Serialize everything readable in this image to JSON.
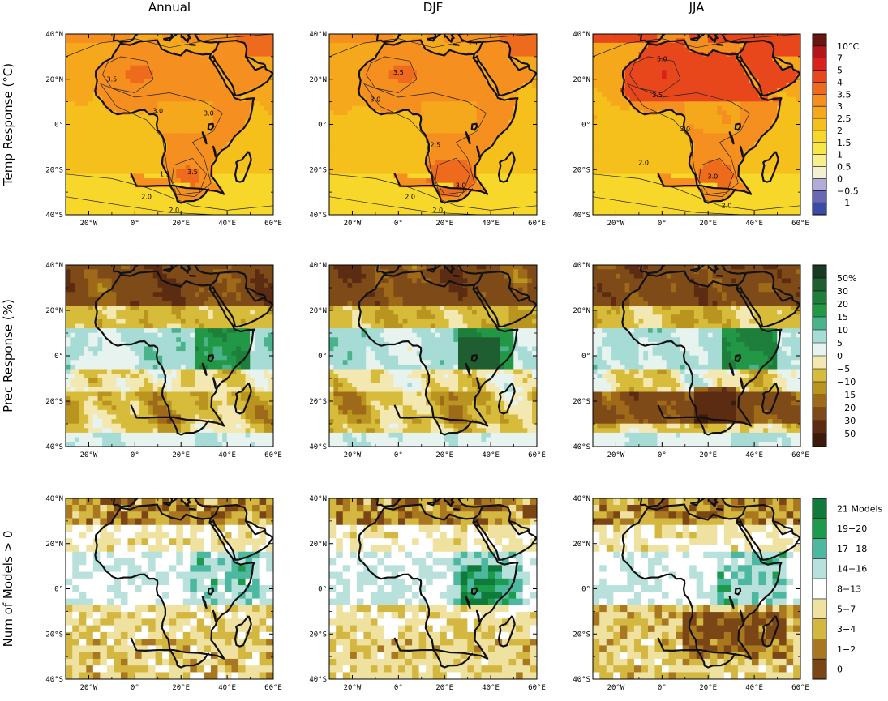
{
  "columns": [
    "Annual",
    "DJF",
    "JJA"
  ],
  "rows": [
    {
      "label": "Temp Response (°C)",
      "legend": [
        "10°C",
        "7",
        "5",
        "4",
        "3.5",
        "3",
        "2.5",
        "2",
        "1.5",
        "1",
        "0.5",
        "0",
        "−0.5",
        "−1"
      ],
      "colors": [
        "#67150f",
        "#b3151b",
        "#d8231c",
        "#e8471c",
        "#ee6b1e",
        "#f58f1f",
        "#f6a81d",
        "#f5c01c",
        "#f7d72a",
        "#f8e646",
        "#f6ef8c",
        "#f2efd2",
        "#b3abd6",
        "#6869b2",
        "#3c4aa7"
      ]
    },
    {
      "label": "Prec Response (%)",
      "legend": [
        "50%",
        "30",
        "20",
        "15",
        "10",
        "5",
        "0",
        "−5",
        "−10",
        "−15",
        "−20",
        "−30",
        "−50"
      ],
      "colors": [
        "#173a22",
        "#1f5e31",
        "#1d7f3b",
        "#229847",
        "#4bb38b",
        "#a7dbd5",
        "#e7f3ee",
        "#f3e8b2",
        "#d7bb3a",
        "#b99520",
        "#9e6a1a",
        "#7e4a18",
        "#5b2c12",
        "#3c1a0c"
      ]
    },
    {
      "label": "Num of Models > 0",
      "legend": [
        "21 Models",
        "19−20",
        "17−18",
        "14−16",
        "8−13",
        "5−7",
        "3−4",
        "1−2",
        "0"
      ],
      "colors": [
        "#0f7a3a",
        "#1d9a4c",
        "#4db8a0",
        "#b9e1dc",
        "#ffffff",
        "#efe2a0",
        "#d4b741",
        "#a8771f",
        "#7a4616"
      ]
    }
  ],
  "map": {
    "lat_labels": [
      "40°N",
      "20°N",
      "0°",
      "20°S",
      "40°S"
    ],
    "lon_labels": [
      "20°W",
      "0°",
      "20°E",
      "40°E",
      "60°E"
    ],
    "lat_range": [
      -40,
      40
    ],
    "lon_range": [
      -30,
      60
    ]
  },
  "contour_labels": {
    "annual": [
      "3.5",
      "3.0",
      "3.0",
      "1.5",
      "3.5",
      "2.0",
      "2.0"
    ],
    "djf": [
      "3.5",
      "3.0",
      "3.5",
      "2.5",
      "3.0",
      "2.0",
      "2.0"
    ],
    "jja": [
      "5.0",
      "3.5",
      "3.0",
      "2.0",
      "3.0",
      "2.0"
    ]
  }
}
